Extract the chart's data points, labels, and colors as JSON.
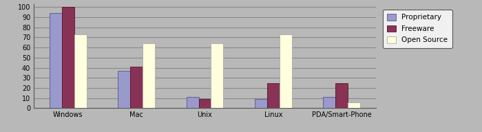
{
  "categories": [
    "Windows",
    "Mac",
    "Unix",
    "Linux",
    "PDA/Smart-Phone"
  ],
  "series": {
    "Proprietary": [
      94,
      37,
      11,
      9,
      11
    ],
    "Freeware": [
      100,
      41,
      9,
      25,
      25
    ],
    "Open Source": [
      73,
      64,
      64,
      73,
      6
    ]
  },
  "bar_colors": {
    "Proprietary": "#9999cc",
    "Freeware": "#883355",
    "Open Source": "#ffffdd"
  },
  "bar_edge_colors": {
    "Proprietary": "#555588",
    "Freeware": "#551122",
    "Open Source": "#aaaaaa"
  },
  "ylim": [
    0,
    103
  ],
  "yticks": [
    0,
    10,
    20,
    30,
    40,
    50,
    60,
    70,
    80,
    90,
    100
  ],
  "background_color": "#b8b8b8",
  "plot_bg_color": "#b8b8b8",
  "grid_color": "#888888",
  "legend_fontsize": 7.5,
  "tick_fontsize": 7.0,
  "bar_width": 0.18,
  "figsize": [
    7.0,
    1.92
  ],
  "dpi": 100
}
